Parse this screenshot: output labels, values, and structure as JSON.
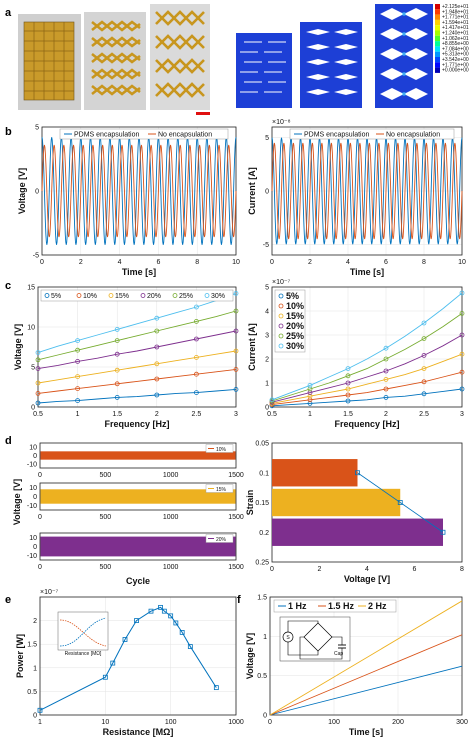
{
  "panels": {
    "a": "a",
    "b": "b",
    "c": "c",
    "d": "d",
    "e": "e",
    "f": "f"
  },
  "colormap_labels": [
    "+2.125e+01",
    "+1.948e+01",
    "+1.771e+01",
    "+1.594e+01",
    "+1.417e+01",
    "+1.240e+01",
    "+1.062e+01",
    "+8.855e+00",
    "+7.084e+00",
    "+5.313e+00",
    "+3.542e+00",
    "+1.771e+00",
    "+0.000e+00"
  ],
  "colormap_colors": [
    "#d40000",
    "#ff3a00",
    "#ff8a00",
    "#ffd200",
    "#e8ff00",
    "#a6ff00",
    "#4dff2c",
    "#00ff9a",
    "#00e5ff",
    "#0097ff",
    "#0048ff",
    "#0008ff",
    "#0000b4"
  ],
  "colors": {
    "blue": "#0072bd",
    "orange": "#d95319",
    "yellow": "#edb120",
    "purple": "#7e2f8e",
    "green": "#77ac30",
    "cyan": "#4dbeee"
  },
  "chart_data": [
    {
      "id": "b-left",
      "type": "line",
      "xlabel": "Time [s]",
      "ylabel": "Voltage [V]",
      "xlim": [
        0,
        10
      ],
      "ylim": [
        -5,
        5
      ],
      "xticks": [
        "0",
        "2",
        "4",
        "6",
        "8",
        "10"
      ],
      "yticks": [
        "-5",
        "0",
        "5"
      ],
      "series": [
        {
          "name": "PDMS encapsulation",
          "amplitude": 4.2,
          "frequency_hz": 2,
          "phase": 1.571,
          "color": "#0072bd"
        },
        {
          "name": "No encapsulation",
          "amplitude": 3.6,
          "frequency_hz": 2,
          "phase": 0,
          "color": "#d95319"
        }
      ]
    },
    {
      "id": "b-right",
      "type": "line",
      "xlabel": "Time [s]",
      "ylabel": "Current [A]",
      "exponent": "×10⁻⁸",
      "xlim": [
        0,
        10
      ],
      "ylim": [
        -6,
        6
      ],
      "xticks": [
        "0",
        "2",
        "4",
        "6",
        "8",
        "10"
      ],
      "yticks": [
        "-5",
        "0",
        "5"
      ],
      "series": [
        {
          "name": "PDMS encapsulation",
          "amplitude": 5.0,
          "frequency_hz": 2,
          "phase": 1.571,
          "color": "#0072bd"
        },
        {
          "name": "No encapsulation",
          "amplitude": 4.5,
          "frequency_hz": 2,
          "phase": 0,
          "color": "#d95319"
        }
      ]
    },
    {
      "id": "c-left",
      "type": "line",
      "xlabel": "Frequency [Hz]",
      "ylabel": "Voltage [V]",
      "xlim": [
        0.5,
        3
      ],
      "ylim": [
        0,
        15
      ],
      "xticks": [
        "0.5",
        "1",
        "1.5",
        "2",
        "2.5",
        "3"
      ],
      "yticks": [
        "0",
        "5",
        "10",
        "15"
      ],
      "x": [
        0.5,
        0.75,
        1,
        1.25,
        1.5,
        1.75,
        2,
        2.25,
        2.5,
        2.75,
        3
      ],
      "series": [
        {
          "name": "5%",
          "color": "#0072bd",
          "values": [
            0.5,
            0.7,
            0.8,
            1.0,
            1.2,
            1.3,
            1.5,
            1.7,
            1.8,
            2.0,
            2.2
          ]
        },
        {
          "name": "10%",
          "color": "#d95319",
          "values": [
            1.7,
            2.0,
            2.3,
            2.6,
            2.9,
            3.2,
            3.5,
            3.8,
            4.1,
            4.4,
            4.7
          ]
        },
        {
          "name": "15%",
          "color": "#edb120",
          "values": [
            3.0,
            3.4,
            3.8,
            4.2,
            4.6,
            5.0,
            5.4,
            5.8,
            6.2,
            6.6,
            7.0
          ]
        },
        {
          "name": "20%",
          "color": "#7e2f8e",
          "values": [
            4.8,
            5.2,
            5.7,
            6.1,
            6.6,
            7.0,
            7.5,
            8.0,
            8.5,
            9.0,
            9.5
          ]
        },
        {
          "name": "25%",
          "color": "#77ac30",
          "values": [
            5.9,
            6.5,
            7.1,
            7.7,
            8.3,
            8.9,
            9.5,
            10.1,
            10.7,
            11.3,
            12.0
          ]
        },
        {
          "name": "30%",
          "color": "#4dbeee",
          "values": [
            6.8,
            7.6,
            8.3,
            9.0,
            9.7,
            10.4,
            11.1,
            11.8,
            12.5,
            13.3,
            14.2
          ]
        }
      ]
    },
    {
      "id": "c-right",
      "type": "line",
      "xlabel": "Frequency [Hz]",
      "ylabel": "Current [A]",
      "exponent": "×10⁻⁷",
      "xlim": [
        0.5,
        3
      ],
      "ylim": [
        0,
        5
      ],
      "xticks": [
        "0.5",
        "1",
        "1.5",
        "2",
        "2.5",
        "3"
      ],
      "yticks": [
        "0",
        "1",
        "2",
        "3",
        "4",
        "5"
      ],
      "x": [
        0.5,
        0.75,
        1,
        1.25,
        1.5,
        1.75,
        2,
        2.25,
        2.5,
        2.75,
        3
      ],
      "series": [
        {
          "name": "5%",
          "color": "#0072bd",
          "values": [
            0.05,
            0.1,
            0.15,
            0.2,
            0.25,
            0.3,
            0.4,
            0.45,
            0.55,
            0.65,
            0.75
          ]
        },
        {
          "name": "10%",
          "color": "#d95319",
          "values": [
            0.1,
            0.2,
            0.3,
            0.4,
            0.5,
            0.6,
            0.75,
            0.9,
            1.05,
            1.25,
            1.45
          ]
        },
        {
          "name": "15%",
          "color": "#edb120",
          "values": [
            0.15,
            0.3,
            0.45,
            0.6,
            0.75,
            0.95,
            1.15,
            1.35,
            1.6,
            1.9,
            2.2
          ]
        },
        {
          "name": "20%",
          "color": "#7e2f8e",
          "values": [
            0.2,
            0.4,
            0.6,
            0.8,
            1.0,
            1.25,
            1.5,
            1.8,
            2.15,
            2.55,
            3.0
          ]
        },
        {
          "name": "25%",
          "color": "#77ac30",
          "values": [
            0.25,
            0.5,
            0.75,
            1.0,
            1.3,
            1.6,
            2.0,
            2.4,
            2.85,
            3.35,
            3.9
          ]
        },
        {
          "name": "30%",
          "color": "#4dbeee",
          "values": [
            0.3,
            0.6,
            0.9,
            1.25,
            1.6,
            2.0,
            2.45,
            2.95,
            3.5,
            4.1,
            4.75
          ]
        }
      ]
    },
    {
      "id": "d-left",
      "type": "line",
      "xlabel": "Cycle",
      "ylabel": "Voltage [V]",
      "xlim": [
        0,
        1500
      ],
      "ylim": [
        -15,
        15
      ],
      "xticks": [
        "0",
        "500",
        "1000",
        "1500"
      ],
      "yticks": [
        "-10",
        "0",
        "10"
      ],
      "series": [
        {
          "name": "10%",
          "color": "#d95319",
          "amplitude": 5
        },
        {
          "name": "15%",
          "color": "#edb120",
          "amplitude": 8
        },
        {
          "name": "20%",
          "color": "#7e2f8e",
          "amplitude": 11
        }
      ]
    },
    {
      "id": "d-right",
      "type": "bar",
      "orientation": "horizontal",
      "xlabel": "Voltage [V]",
      "ylabel": "Strain",
      "xlim": [
        0,
        8
      ],
      "ylim": [
        0.05,
        0.25
      ],
      "xticks": [
        "0",
        "2",
        "4",
        "6",
        "8"
      ],
      "yticks": [
        "0.05",
        "0.1",
        "0.15",
        "0.2",
        "0.25"
      ],
      "categories": [
        0.1,
        0.15,
        0.2
      ],
      "values": [
        3.6,
        5.4,
        7.2
      ],
      "bar_colors": [
        "#d95319",
        "#edb120",
        "#7e2f8e"
      ],
      "line_color": "#0072bd"
    },
    {
      "id": "e",
      "type": "line",
      "xscale": "log",
      "xlabel": "Resistance [MΩ]",
      "ylabel": "Power [W]",
      "exponent": "×10⁻⁷",
      "xlim": [
        1,
        1000
      ],
      "ylim": [
        0,
        2.5
      ],
      "xticks": [
        "1",
        "10",
        "100",
        "1000"
      ],
      "yticks": [
        "0",
        "0.5",
        "1",
        "1.5",
        "2"
      ],
      "x": [
        1,
        10,
        13,
        20,
        30,
        50,
        70,
        80,
        100,
        120,
        150,
        200,
        500
      ],
      "values": [
        0.1,
        0.8,
        1.1,
        1.6,
        2.0,
        2.2,
        2.28,
        2.2,
        2.1,
        1.95,
        1.75,
        1.45,
        0.58
      ],
      "inset_xlabel": "Resistance [MΩ]",
      "color": "#0072bd"
    },
    {
      "id": "f",
      "type": "line",
      "xlabel": "Time [s]",
      "ylabel": "Voltage [V]",
      "xlim": [
        0,
        300
      ],
      "ylim": [
        0,
        1.5
      ],
      "xticks": [
        "0",
        "100",
        "200",
        "300"
      ],
      "yticks": [
        "0",
        "0.5",
        "1",
        "1.5"
      ],
      "x": [
        0,
        300
      ],
      "series": [
        {
          "name": "1 Hz",
          "color": "#0072bd",
          "values": [
            0,
            0.62
          ]
        },
        {
          "name": "1.5 Hz",
          "color": "#d95319",
          "values": [
            0,
            1.02
          ]
        },
        {
          "name": "2 Hz",
          "color": "#edb120",
          "values": [
            0,
            1.45
          ]
        }
      ],
      "circuit": {
        "source": "S",
        "cap": "Cap"
      }
    }
  ]
}
